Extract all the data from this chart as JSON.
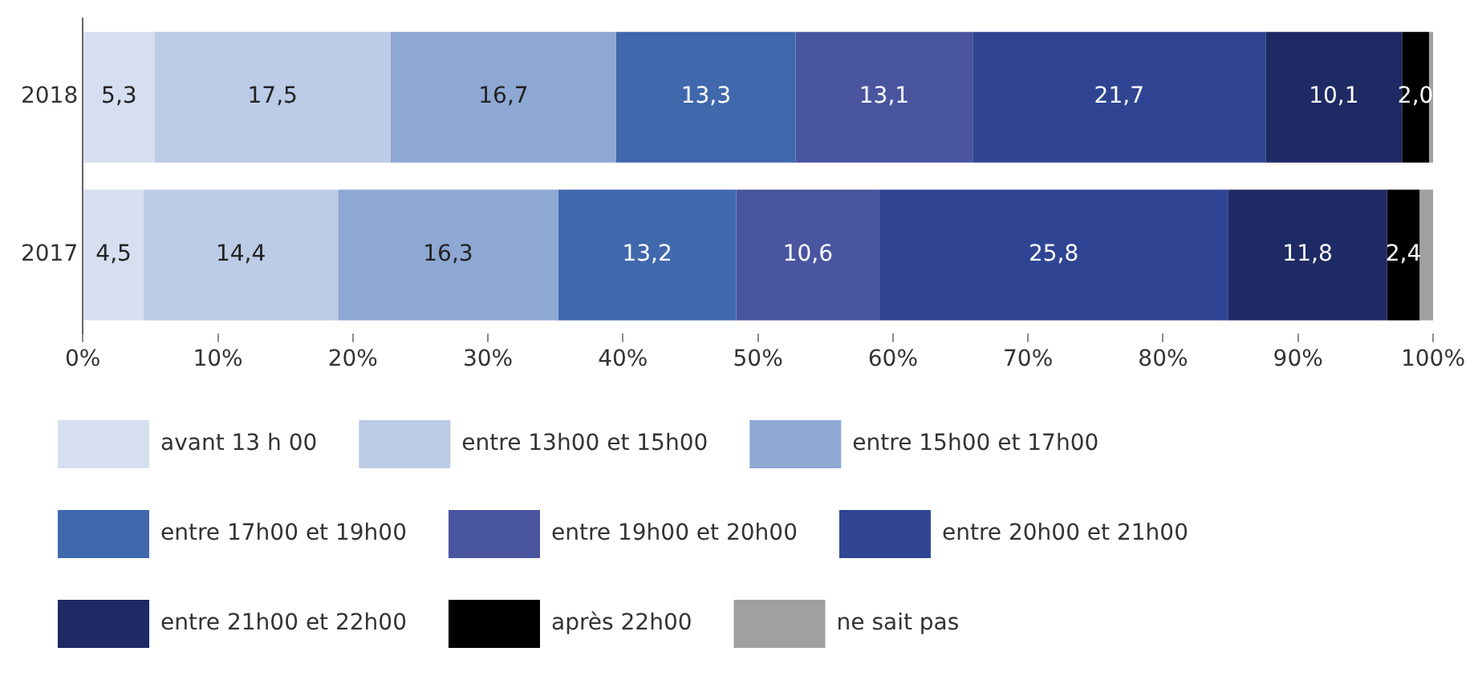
{
  "chart_data": {
    "type": "bar",
    "orientation": "horizontal",
    "stacked": true,
    "categories": [
      "2018",
      "2017"
    ],
    "series": [
      {
        "name": "avant 13 h 00",
        "color": "#d6dff0",
        "values": [
          5.3,
          4.5
        ],
        "value_labels": [
          "5,3",
          "4,5"
        ]
      },
      {
        "name": "entre 13h00 et 15h00",
        "color": "#bccbe6",
        "values": [
          17.5,
          14.4
        ],
        "value_labels": [
          "17,5",
          "14,4"
        ]
      },
      {
        "name": "entre 15h00 et 17h00",
        "color": "#8ea8d4",
        "values": [
          16.7,
          16.3
        ],
        "value_labels": [
          "16,7",
          "16,3"
        ]
      },
      {
        "name": "entre 17h00 et 19h00",
        "color": "#4068ad",
        "values": [
          13.3,
          13.2
        ],
        "value_labels": [
          "13,3",
          "13,2"
        ]
      },
      {
        "name": "entre 19h00 et 20h00",
        "color": "#4a55a0",
        "values": [
          13.1,
          10.6
        ],
        "value_labels": [
          "13,1",
          "10,6"
        ]
      },
      {
        "name": "entre 20h00 et 21h00",
        "color": "#2f4593",
        "values": [
          21.7,
          25.8
        ],
        "value_labels": [
          "21,7",
          "25,8"
        ]
      },
      {
        "name": "entre 21h00 et 22h00",
        "color": "#1e2a63",
        "values": [
          10.1,
          11.8
        ],
        "value_labels": [
          "10,1",
          "11,8"
        ]
      },
      {
        "name": "après 22h00",
        "color": "#000000",
        "values": [
          2.0,
          2.4
        ],
        "value_labels": [
          "2,0",
          "2,4"
        ]
      },
      {
        "name": "ne sait pas",
        "color": "#a0a0a0",
        "values": [
          0.3,
          1.0
        ],
        "value_labels": [
          null,
          null
        ]
      }
    ],
    "xlim": [
      0,
      100
    ],
    "xticks": [
      {
        "value": 0,
        "label": "0%"
      },
      {
        "value": 10,
        "label": "10%"
      },
      {
        "value": 20,
        "label": "20%"
      },
      {
        "value": 30,
        "label": "30%"
      },
      {
        "value": 40,
        "label": "40%"
      },
      {
        "value": 50,
        "label": "50%"
      },
      {
        "value": 60,
        "label": "60%"
      },
      {
        "value": 70,
        "label": "70%"
      },
      {
        "value": 80,
        "label": "80%"
      },
      {
        "value": 90,
        "label": "90%"
      },
      {
        "value": 100,
        "label": "100%"
      }
    ],
    "grid": false,
    "legend": "bottom"
  }
}
